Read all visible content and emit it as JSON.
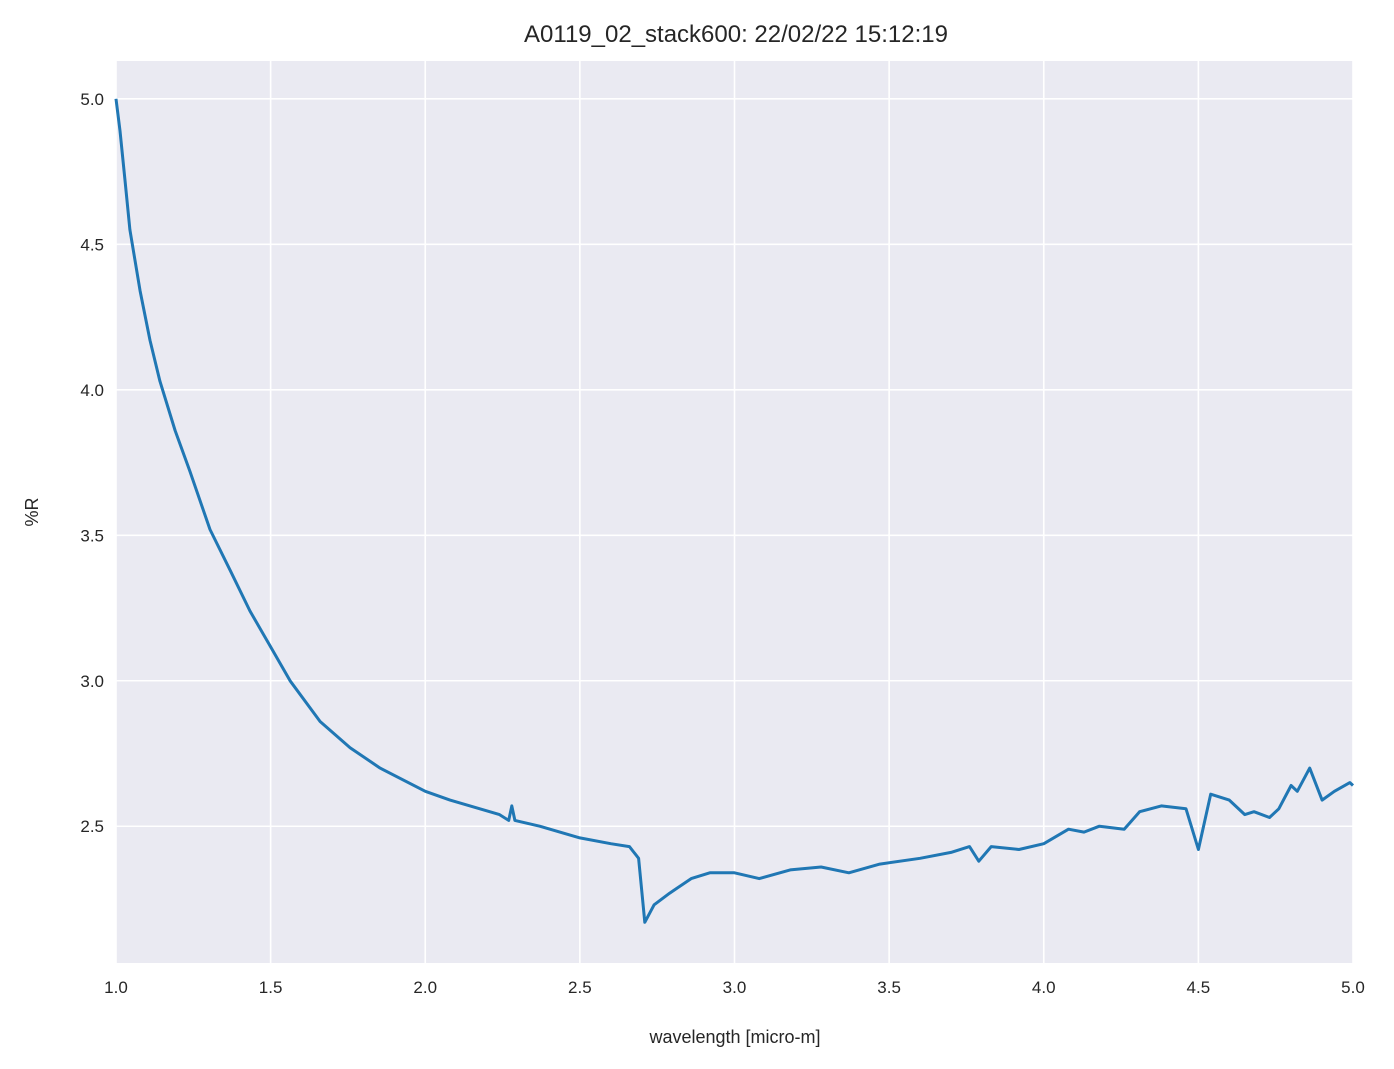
{
  "chart_data": {
    "type": "line",
    "title": "A0119_02_stack600:  22/02/22 15:12:19",
    "xlabel": "wavelength [micro-m]",
    "ylabel": "%R",
    "xlim": [
      1.0,
      5.0
    ],
    "ylim": [
      2.03,
      5.13
    ],
    "xticks": [
      "1.0",
      "1.5",
      "2.0",
      "2.5",
      "3.0",
      "3.5",
      "4.0",
      "4.5",
      "5.0"
    ],
    "yticks": [
      "2.5",
      "3.0",
      "3.5",
      "4.0",
      "4.5",
      "5.0"
    ],
    "grid": true,
    "colors": {
      "background": "#eaeaf2",
      "grid": "#ffffff",
      "line": "#2077b4"
    },
    "series": [
      {
        "x": [
          1.0,
          1.013,
          1.029,
          1.045,
          1.078,
          1.11,
          1.142,
          1.191,
          1.239,
          1.304,
          1.369,
          1.433,
          1.498,
          1.563,
          1.66,
          1.757,
          1.854,
          2.0,
          2.08,
          2.24,
          2.27,
          2.28,
          2.29,
          2.37,
          2.5,
          2.6,
          2.66,
          2.69,
          2.71,
          2.74,
          2.79,
          2.86,
          2.92,
          3.0,
          3.08,
          3.18,
          3.28,
          3.37,
          3.47,
          3.6,
          3.7,
          3.76,
          3.79,
          3.83,
          3.92,
          4.0,
          4.08,
          4.13,
          4.18,
          4.26,
          4.31,
          4.38,
          4.46,
          4.5,
          4.54,
          4.6,
          4.65,
          4.68,
          4.73,
          4.76,
          4.8,
          4.82,
          4.86,
          4.9,
          4.94,
          4.99,
          5.0
        ],
        "y": [
          5.0,
          4.89,
          4.72,
          4.55,
          4.34,
          4.17,
          4.03,
          3.86,
          3.72,
          3.52,
          3.38,
          3.24,
          3.12,
          3.0,
          2.86,
          2.77,
          2.7,
          2.62,
          2.59,
          2.54,
          2.52,
          2.57,
          2.52,
          2.5,
          2.46,
          2.44,
          2.43,
          2.39,
          2.17,
          2.23,
          2.27,
          2.32,
          2.34,
          2.34,
          2.32,
          2.35,
          2.36,
          2.34,
          2.37,
          2.39,
          2.41,
          2.43,
          2.38,
          2.43,
          2.42,
          2.44,
          2.49,
          2.48,
          2.5,
          2.49,
          2.55,
          2.57,
          2.56,
          2.42,
          2.61,
          2.59,
          2.54,
          2.55,
          2.53,
          2.56,
          2.64,
          2.62,
          2.7,
          2.59,
          2.62,
          2.65,
          2.64
        ]
      }
    ]
  }
}
